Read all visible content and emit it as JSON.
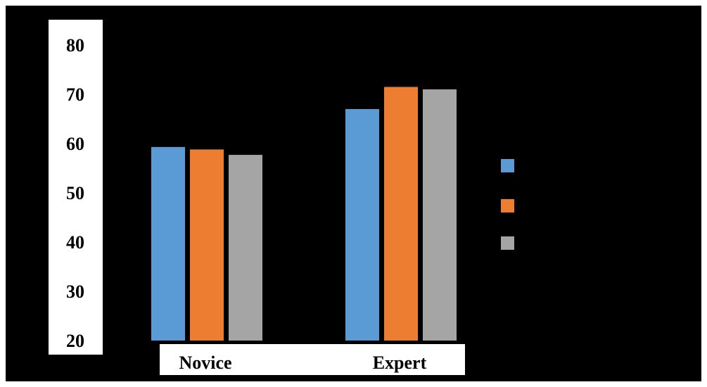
{
  "chart_data": {
    "type": "bar",
    "categories": [
      "Novice",
      "Expert"
    ],
    "series": [
      {
        "values": [
          59.3,
          67.0
        ]
      },
      {
        "values": [
          58.8,
          71.5
        ]
      },
      {
        "values": [
          57.7,
          71.0
        ]
      }
    ],
    "ylim": [
      20,
      80
    ],
    "yticks": [
      "80",
      "70",
      "60",
      "50",
      "40",
      "30",
      "20"
    ],
    "colors": {
      "background": "#000000",
      "panel": "#ffffff",
      "series": [
        "#5b9bd5",
        "#ed7d31",
        "#a5a5a5"
      ]
    },
    "legend_position": "right",
    "grid": false
  }
}
